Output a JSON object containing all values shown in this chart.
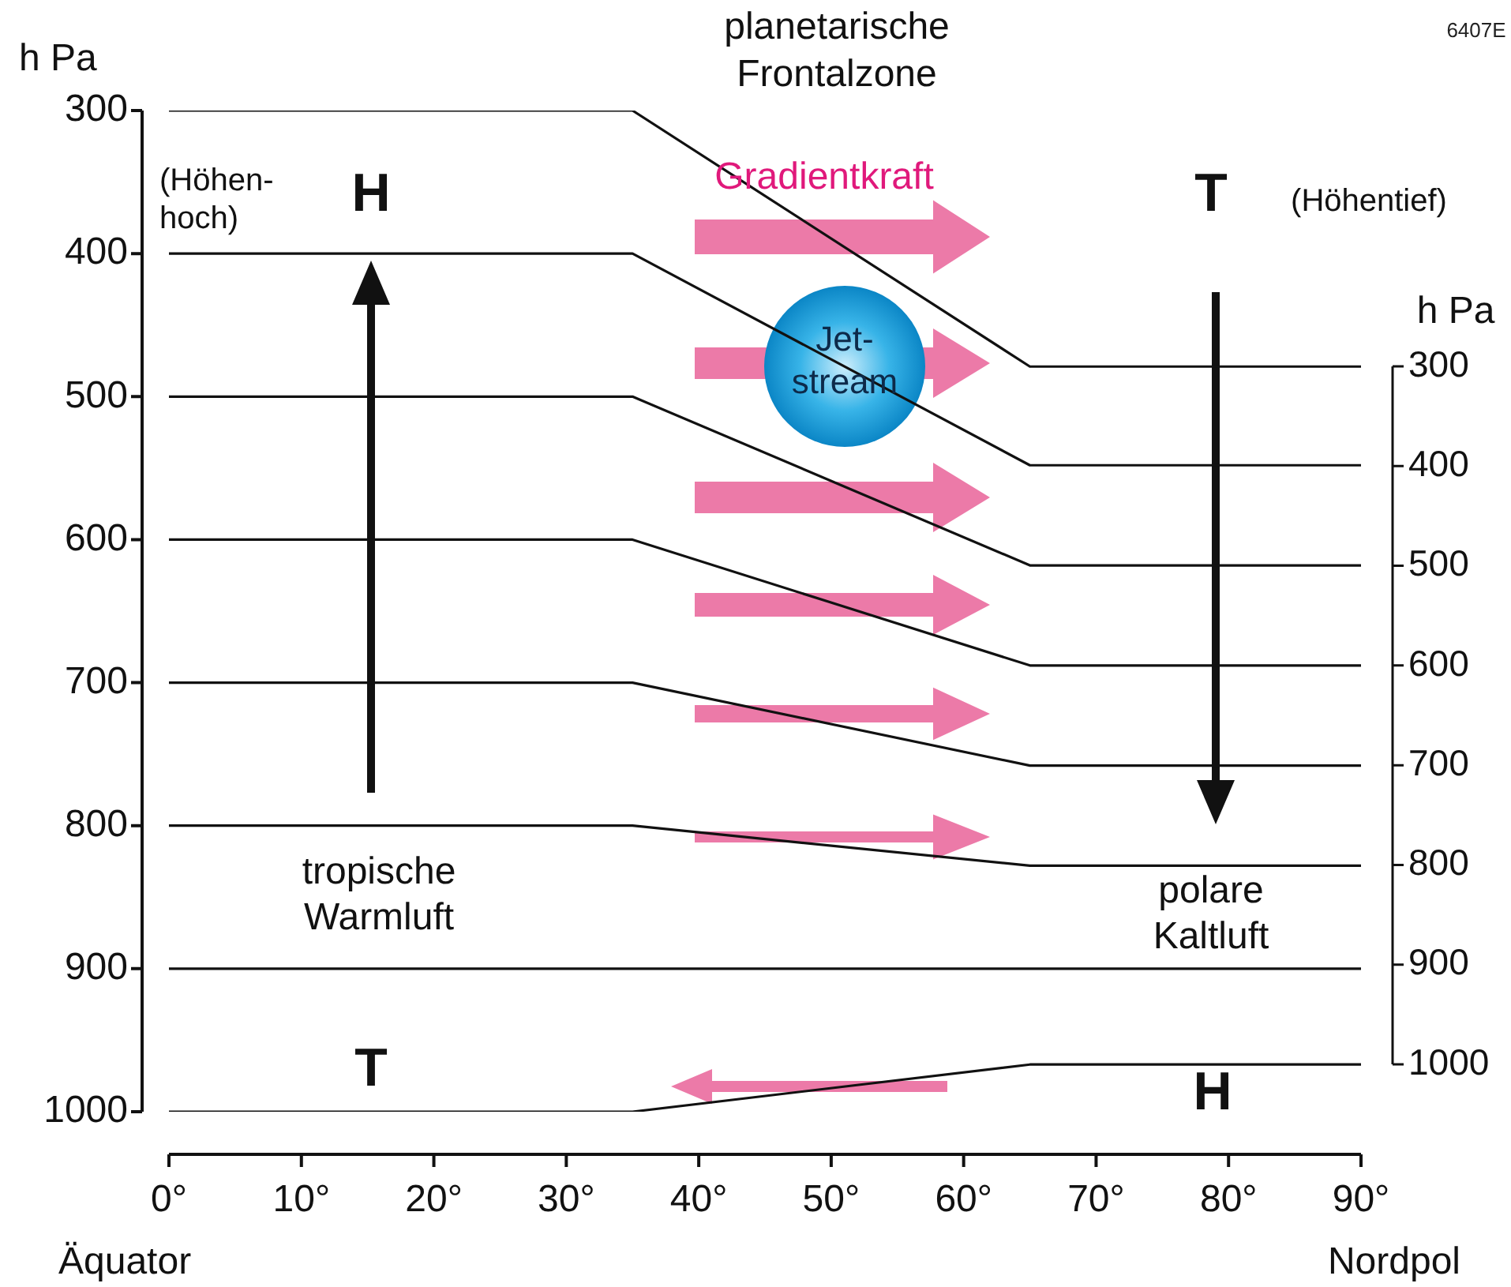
{
  "chart_data": {
    "type": "line",
    "title": "planetarische Frontalzone",
    "ylabel": "h Pa",
    "y2label": "h Pa",
    "x": [
      0,
      35,
      65,
      90
    ],
    "xlim": [
      0,
      90
    ],
    "xticks": [
      {
        "value": 0,
        "label": "0°"
      },
      {
        "value": 10,
        "label": "10°"
      },
      {
        "value": 20,
        "label": "20°"
      },
      {
        "value": 30,
        "label": "30°"
      },
      {
        "value": 40,
        "label": "40°"
      },
      {
        "value": 50,
        "label": "50°"
      },
      {
        "value": 60,
        "label": "60°"
      },
      {
        "value": 70,
        "label": "70°"
      },
      {
        "value": 80,
        "label": "80°"
      },
      {
        "value": 90,
        "label": "90°"
      }
    ],
    "ylim": [
      1000,
      300
    ],
    "yticks": [
      300,
      400,
      500,
      600,
      700,
      800,
      900,
      1000
    ],
    "y2lim": [
      1000,
      300
    ],
    "y2ticks": [
      300,
      400,
      500,
      600,
      700,
      800,
      900,
      1000
    ],
    "series": [
      {
        "color": "#111111",
        "values": [
          300,
          300,
          479,
          479
        ]
      },
      {
        "color": "#111111",
        "values": [
          400,
          400,
          548,
          548
        ]
      },
      {
        "color": "#111111",
        "values": [
          500,
          500,
          618,
          618
        ]
      },
      {
        "color": "#111111",
        "values": [
          600,
          600,
          688,
          688
        ]
      },
      {
        "color": "#111111",
        "values": [
          700,
          700,
          758,
          758
        ]
      },
      {
        "color": "#111111",
        "values": [
          800,
          800,
          828,
          828
        ]
      },
      {
        "color": "#111111",
        "values": [
          900,
          900,
          900,
          900
        ]
      },
      {
        "color": "#111111",
        "values": [
          1000,
          1000,
          967,
          967
        ]
      }
    ],
    "annotations": [
      "6407E",
      "(Höhen-hoch)",
      "H",
      "Gradientkraft",
      "T",
      "(Höhentief)",
      "Jet-stream",
      "tropische Warmluft",
      "polare Kaltluft",
      "T",
      "H",
      "Äquator",
      "Nordpol"
    ],
    "grid": false,
    "legend": false,
    "marker": "none",
    "line_style": "solid"
  }
}
